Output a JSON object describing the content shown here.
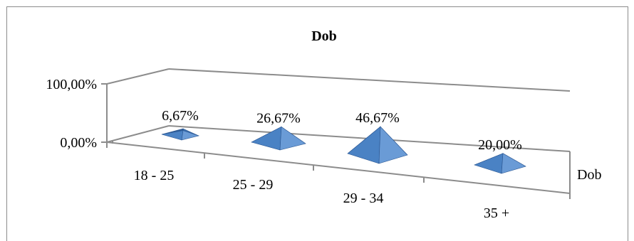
{
  "chart_data": {
    "type": "bar",
    "subtype": "3d-pyramid",
    "title": "Dob",
    "categories": [
      "18 - 25",
      "25 - 29",
      "29 - 34",
      "35 +"
    ],
    "series": [
      {
        "name": "Dob",
        "values": [
          6.67,
          26.67,
          46.67,
          20.0
        ],
        "color": "#4f81bd"
      }
    ],
    "data_labels": [
      "6,67%",
      "26,67%",
      "46,67%",
      "20,00%"
    ],
    "y_ticks": [
      "0,00%",
      "100,00%"
    ],
    "ylim": [
      0,
      100
    ],
    "grid": false,
    "legend": "none",
    "depth_axis_label": "Dob"
  }
}
